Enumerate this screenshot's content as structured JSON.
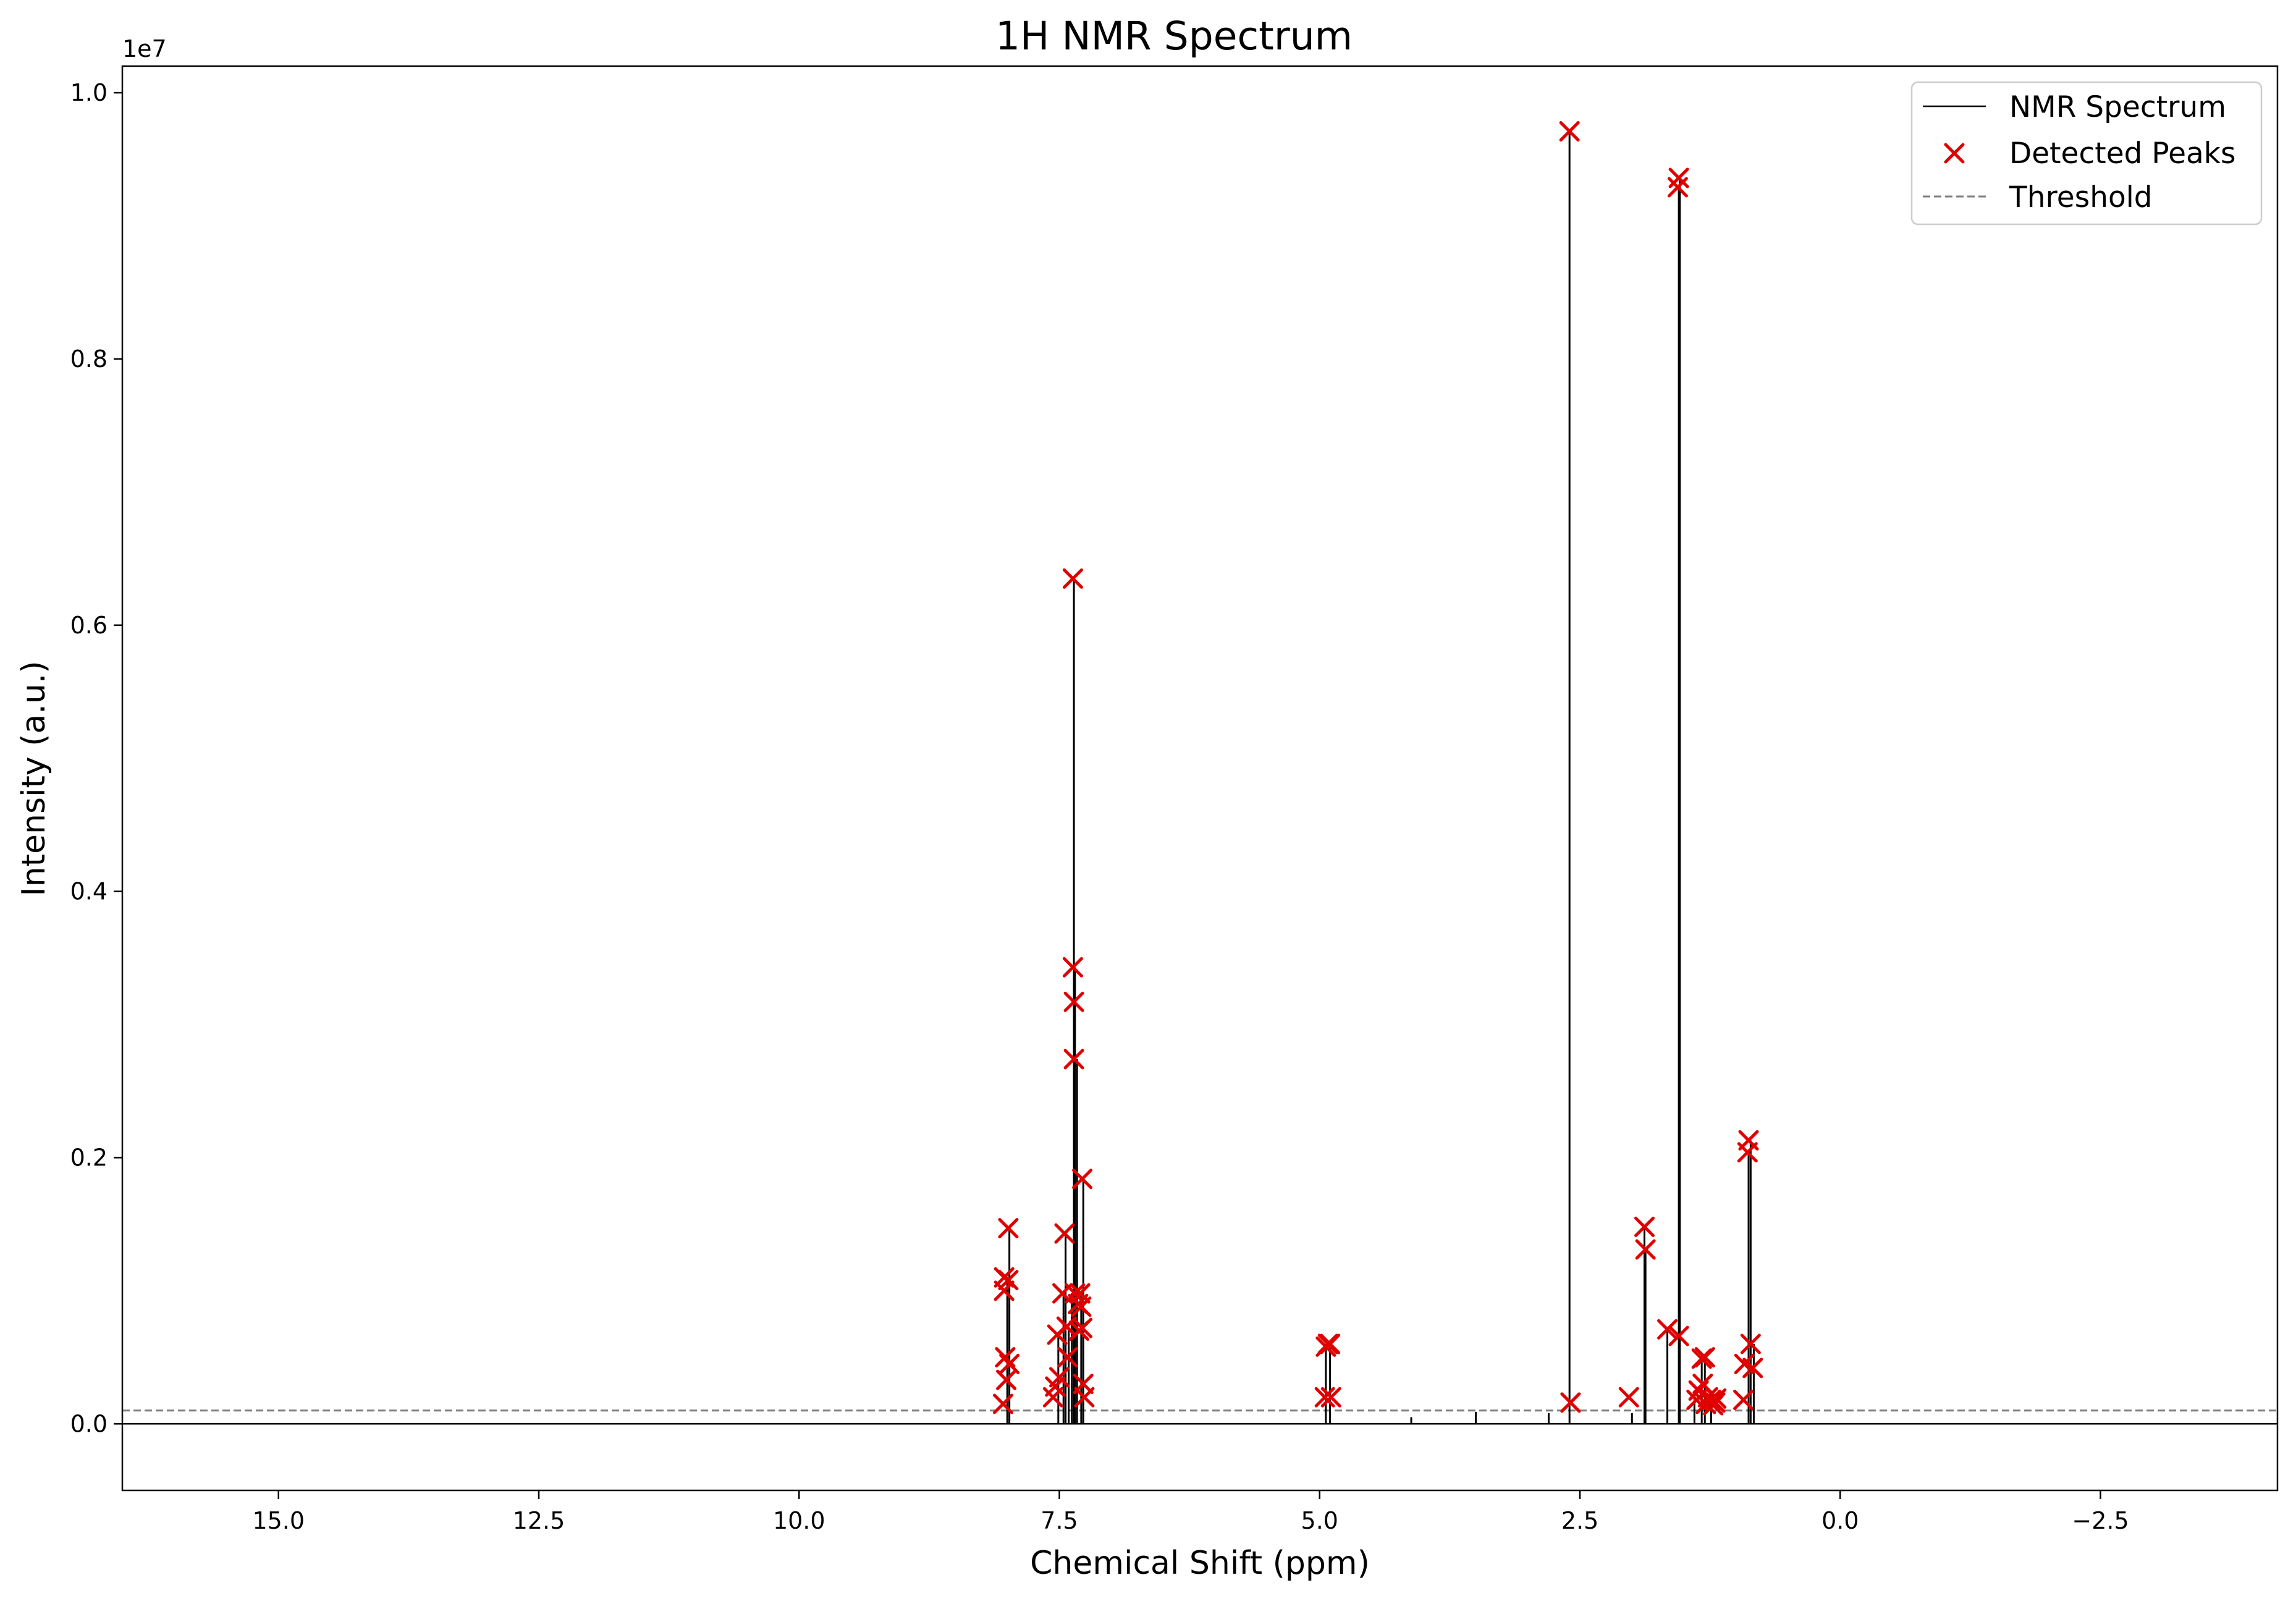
{
  "chart_data": {
    "type": "line",
    "title": "1H NMR Spectrum",
    "xlabel": "Chemical Shift (ppm)",
    "ylabel": "Intensity (a.u.)",
    "y_offset_label": "1e7",
    "xlim": [
      16.5,
      -4.2
    ],
    "ylim": [
      -500000,
      10200000
    ],
    "x_reversed": true,
    "grid": false,
    "legend_position": "top-right",
    "x_ticks": [
      15.0,
      12.5,
      10.0,
      7.5,
      5.0,
      2.5,
      0.0,
      -2.5
    ],
    "x_tick_labels": [
      "15.0",
      "12.5",
      "10.0",
      "7.5",
      "5.0",
      "2.5",
      "0.0",
      "−2.5"
    ],
    "y_ticks": [
      0,
      2000000,
      4000000,
      6000000,
      8000000,
      10000000
    ],
    "y_tick_labels": [
      "0.0",
      "0.2",
      "0.4",
      "0.6",
      "0.8",
      "1.0"
    ],
    "threshold": 100000,
    "colors": {
      "spectrum": "#000000",
      "peaks": "#e00000",
      "threshold": "#7f7f7f"
    },
    "legend": [
      {
        "label": "NMR Spectrum",
        "style": "line"
      },
      {
        "label": "Detected Peaks",
        "style": "marker"
      },
      {
        "label": "Threshold",
        "style": "dashed"
      }
    ],
    "spectrum_lines": [
      {
        "x": 8.0,
        "y": 1100000
      },
      {
        "x": 7.98,
        "y": 1470000
      },
      {
        "x": 7.51,
        "y": 670000
      },
      {
        "x": 7.46,
        "y": 980000
      },
      {
        "x": 7.44,
        "y": 1430000
      },
      {
        "x": 7.41,
        "y": 730000
      },
      {
        "x": 7.38,
        "y": 980000
      },
      {
        "x": 7.36,
        "y": 6350000
      },
      {
        "x": 7.35,
        "y": 3430000
      },
      {
        "x": 7.33,
        "y": 2740000
      },
      {
        "x": 7.29,
        "y": 980000
      },
      {
        "x": 7.27,
        "y": 1840000
      },
      {
        "x": 4.94,
        "y": 600000
      },
      {
        "x": 4.9,
        "y": 600000
      },
      {
        "x": 4.12,
        "y": 50000
      },
      {
        "x": 3.5,
        "y": 90000
      },
      {
        "x": 2.8,
        "y": 80000
      },
      {
        "x": 2.6,
        "y": 9710000
      },
      {
        "x": 2.0,
        "y": 80000
      },
      {
        "x": 1.88,
        "y": 1480000
      },
      {
        "x": 1.87,
        "y": 1310000
      },
      {
        "x": 1.66,
        "y": 710000
      },
      {
        "x": 1.55,
        "y": 9290000
      },
      {
        "x": 1.54,
        "y": 9360000
      },
      {
        "x": 1.4,
        "y": 250000
      },
      {
        "x": 1.33,
        "y": 490000
      },
      {
        "x": 1.3,
        "y": 500000
      },
      {
        "x": 1.24,
        "y": 200000
      },
      {
        "x": 0.88,
        "y": 2040000
      },
      {
        "x": 0.86,
        "y": 2130000
      },
      {
        "x": 0.83,
        "y": 600000
      }
    ],
    "peaks": [
      {
        "x": 8.04,
        "y": 150000
      },
      {
        "x": 8.03,
        "y": 1000000
      },
      {
        "x": 8.03,
        "y": 1100000
      },
      {
        "x": 8.02,
        "y": 500000
      },
      {
        "x": 8.01,
        "y": 330000
      },
      {
        "x": 7.99,
        "y": 1470000
      },
      {
        "x": 7.99,
        "y": 1080000
      },
      {
        "x": 7.98,
        "y": 450000
      },
      {
        "x": 7.56,
        "y": 200000
      },
      {
        "x": 7.54,
        "y": 280000
      },
      {
        "x": 7.52,
        "y": 670000
      },
      {
        "x": 7.5,
        "y": 350000
      },
      {
        "x": 7.47,
        "y": 980000
      },
      {
        "x": 7.45,
        "y": 1430000
      },
      {
        "x": 7.43,
        "y": 730000
      },
      {
        "x": 7.42,
        "y": 500000
      },
      {
        "x": 7.37,
        "y": 6350000
      },
      {
        "x": 7.37,
        "y": 3430000
      },
      {
        "x": 7.36,
        "y": 3170000
      },
      {
        "x": 7.36,
        "y": 2740000
      },
      {
        "x": 7.35,
        "y": 980000
      },
      {
        "x": 7.32,
        "y": 900000
      },
      {
        "x": 7.31,
        "y": 700000
      },
      {
        "x": 7.3,
        "y": 980000
      },
      {
        "x": 7.29,
        "y": 880000
      },
      {
        "x": 7.28,
        "y": 1840000
      },
      {
        "x": 7.28,
        "y": 720000
      },
      {
        "x": 7.27,
        "y": 300000
      },
      {
        "x": 7.26,
        "y": 200000
      },
      {
        "x": 4.95,
        "y": 200000
      },
      {
        "x": 4.94,
        "y": 580000
      },
      {
        "x": 4.92,
        "y": 600000
      },
      {
        "x": 4.9,
        "y": 600000
      },
      {
        "x": 4.89,
        "y": 200000
      },
      {
        "x": 2.6,
        "y": 9710000
      },
      {
        "x": 2.59,
        "y": 160000
      },
      {
        "x": 2.03,
        "y": 200000
      },
      {
        "x": 1.88,
        "y": 1480000
      },
      {
        "x": 1.87,
        "y": 1310000
      },
      {
        "x": 1.66,
        "y": 710000
      },
      {
        "x": 1.56,
        "y": 9290000
      },
      {
        "x": 1.55,
        "y": 9360000
      },
      {
        "x": 1.55,
        "y": 660000
      },
      {
        "x": 1.38,
        "y": 180000
      },
      {
        "x": 1.36,
        "y": 250000
      },
      {
        "x": 1.33,
        "y": 490000
      },
      {
        "x": 1.32,
        "y": 300000
      },
      {
        "x": 1.3,
        "y": 500000
      },
      {
        "x": 1.29,
        "y": 150000
      },
      {
        "x": 1.27,
        "y": 200000
      },
      {
        "x": 1.24,
        "y": 180000
      },
      {
        "x": 1.22,
        "y": 140000
      },
      {
        "x": 1.2,
        "y": 160000
      },
      {
        "x": 1.19,
        "y": 190000
      },
      {
        "x": 0.93,
        "y": 180000
      },
      {
        "x": 0.92,
        "y": 450000
      },
      {
        "x": 0.89,
        "y": 2040000
      },
      {
        "x": 0.88,
        "y": 2130000
      },
      {
        "x": 0.86,
        "y": 600000
      },
      {
        "x": 0.84,
        "y": 420000
      }
    ]
  }
}
